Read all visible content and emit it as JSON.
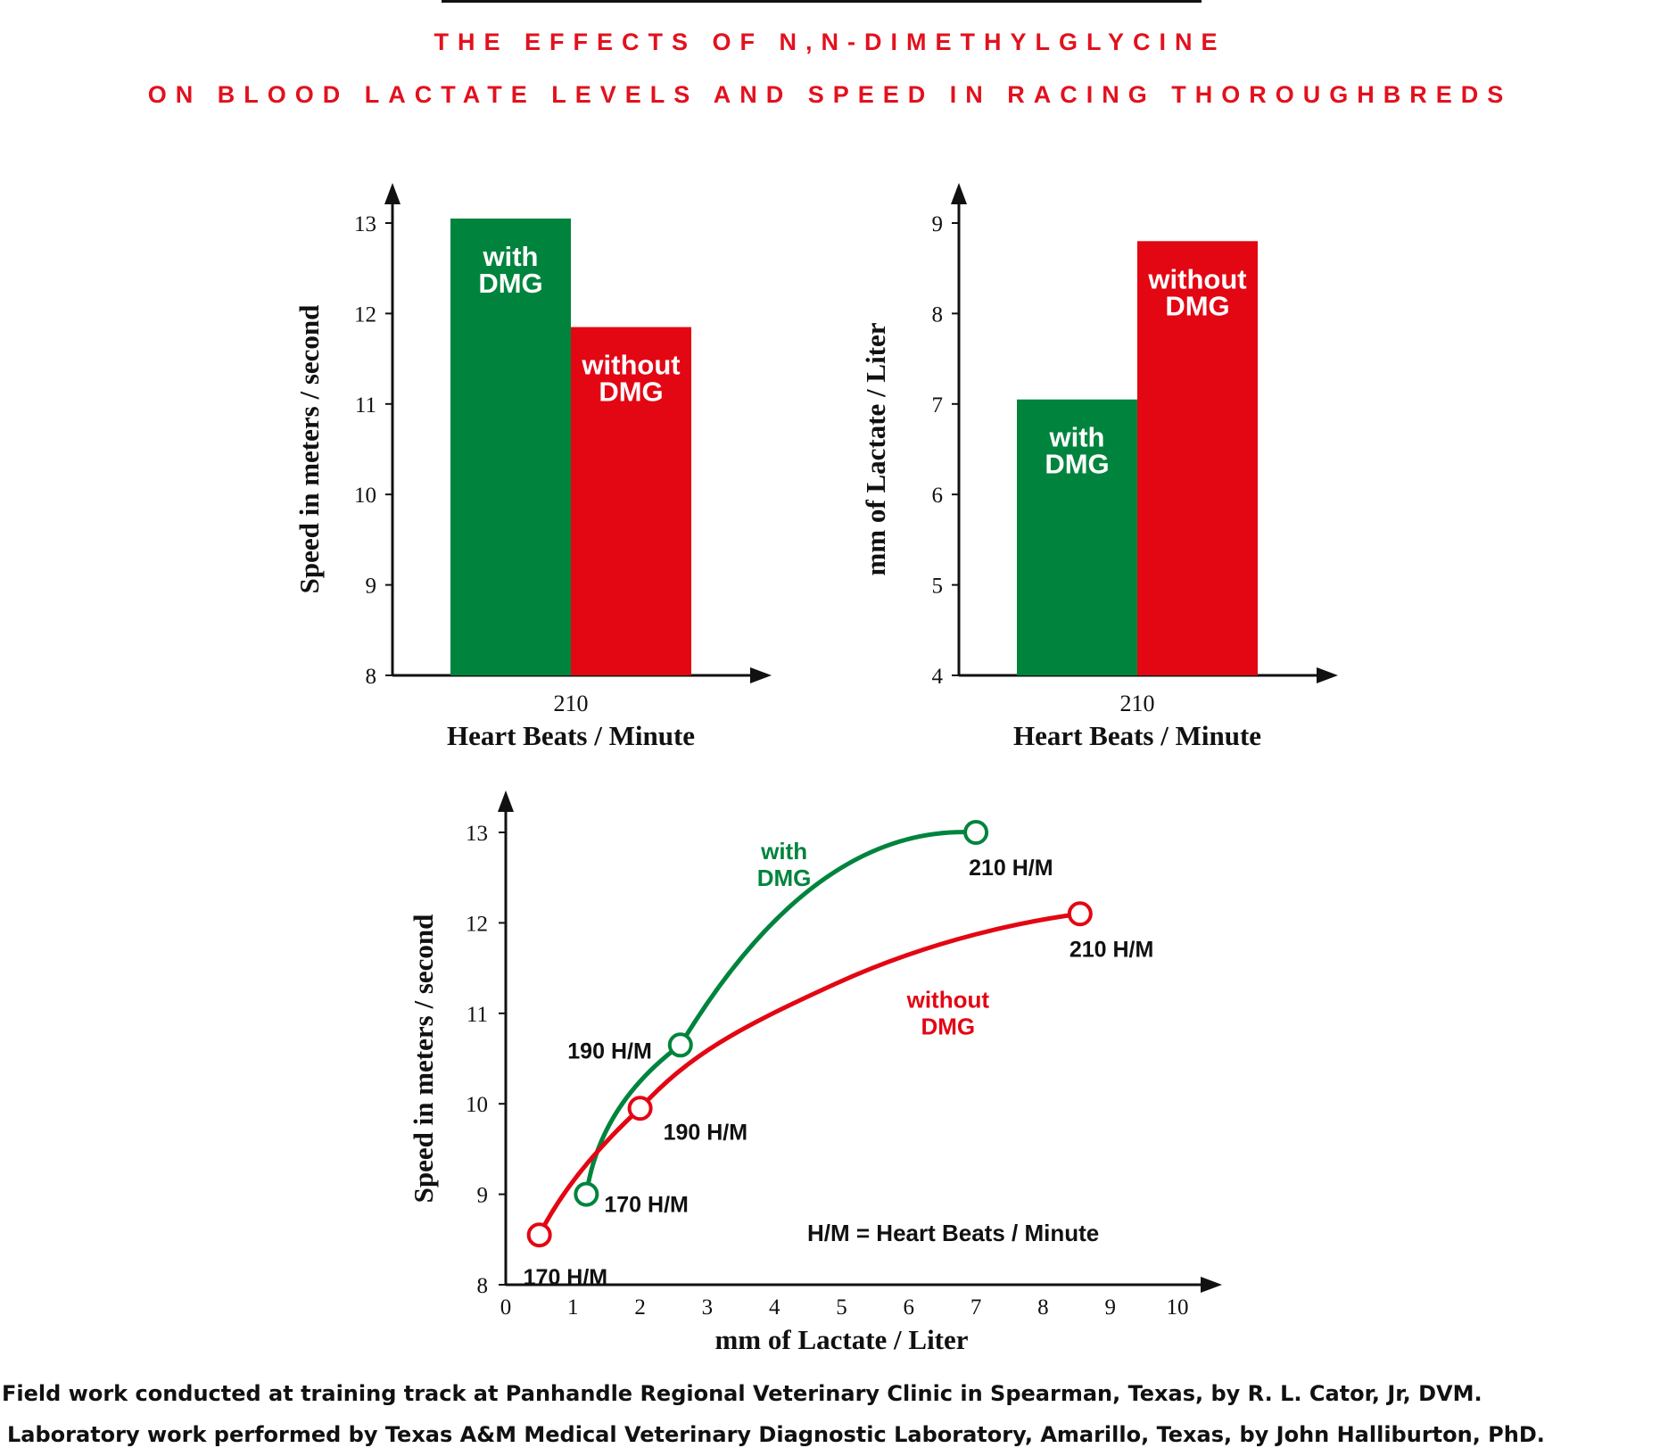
{
  "title": {
    "line1": "THE EFFECTS OF N,N-DIMETHYLGLYCINE",
    "line2": "ON BLOOD LACTATE LEVELS AND SPEED IN RACING THOROUGHBREDS"
  },
  "colors": {
    "with": "#00843d",
    "without": "#e30613",
    "title": "#e2111e",
    "axis": "#111111"
  },
  "chart_data": [
    {
      "type": "bar",
      "categories": [
        "210"
      ],
      "xlabel": "Heart Beats / Minute",
      "ylabel": "Speed in meters / second",
      "ylim": [
        8,
        13
      ],
      "yticks": [
        "8",
        "9",
        "10",
        "11",
        "12",
        "13"
      ],
      "series": [
        {
          "name": "with DMG",
          "label_line1": "with",
          "label_line2": "DMG",
          "values": [
            13.05
          ]
        },
        {
          "name": "without DMG",
          "label_line1": "without",
          "label_line2": "DMG",
          "values": [
            11.85
          ]
        }
      ]
    },
    {
      "type": "bar",
      "categories": [
        "210"
      ],
      "xlabel": "Heart Beats / Minute",
      "ylabel": "mm of Lactate / Liter",
      "ylim": [
        4,
        9
      ],
      "yticks": [
        "4",
        "5",
        "6",
        "7",
        "8",
        "9"
      ],
      "series": [
        {
          "name": "with DMG",
          "label_line1": "with",
          "label_line2": "DMG",
          "values": [
            7.05
          ]
        },
        {
          "name": "without DMG",
          "label_line1": "without",
          "label_line2": "DMG",
          "values": [
            8.8
          ]
        }
      ]
    },
    {
      "type": "line",
      "xlabel": "mm of Lactate / Liter",
      "ylabel": "Speed in meters / second",
      "xlim": [
        0,
        10
      ],
      "ylim": [
        8,
        13
      ],
      "xticks": [
        "0",
        "1",
        "2",
        "3",
        "4",
        "5",
        "6",
        "7",
        "8",
        "9",
        "10"
      ],
      "yticks": [
        "8",
        "9",
        "10",
        "11",
        "12",
        "13"
      ],
      "note": "H/M = Heart Beats / Minute",
      "series": [
        {
          "name": "with DMG",
          "label_line1": "with",
          "label_line2": "DMG",
          "x": [
            1.2,
            2.6,
            7.0
          ],
          "y": [
            9.0,
            10.65,
            13.0
          ],
          "point_labels": [
            "170 H/M",
            "190 H/M",
            "210 H/M"
          ]
        },
        {
          "name": "without DMG",
          "label_line1": "without",
          "label_line2": "DMG",
          "x": [
            0.5,
            2.0,
            8.55
          ],
          "y": [
            8.55,
            9.95,
            12.1
          ],
          "point_labels": [
            "170 H/M",
            "190 H/M",
            "210 H/M"
          ]
        }
      ]
    }
  ],
  "footer": {
    "line1": "Field work conducted at training track at Panhandle Regional Veterinary Clinic in Spearman, Texas, by R. L. Cator, Jr, DVM.",
    "line2": "Laboratory work performed by Texas A&M Medical Veterinary Diagnostic Laboratory, Amarillo, Texas, by John Halliburton, PhD."
  }
}
